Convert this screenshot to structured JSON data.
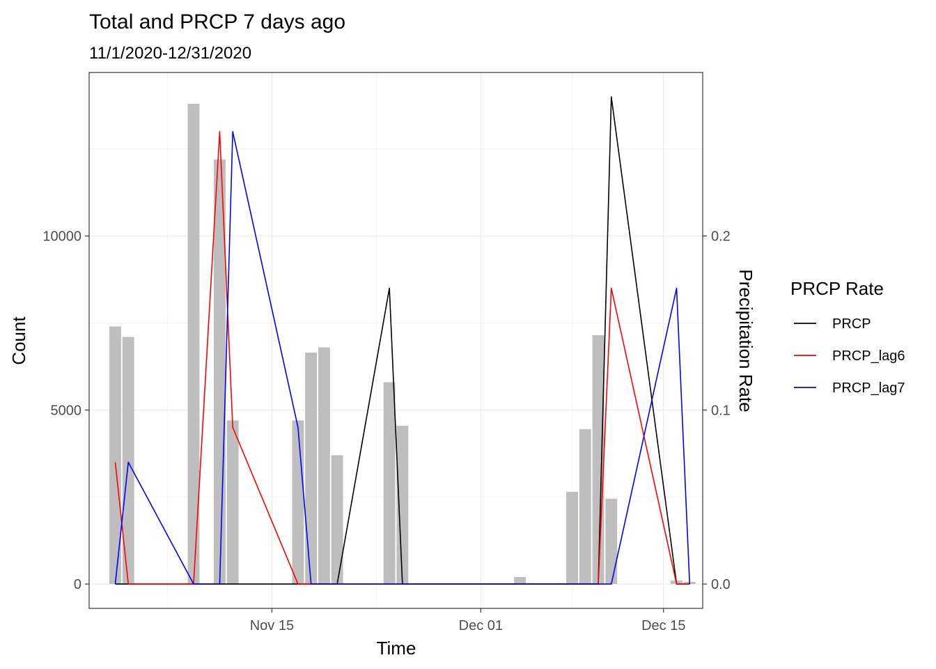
{
  "chart_data": {
    "type": "bar+line",
    "title": "Total and PRCP 7 days ago",
    "subtitle": "11/1/2020-12/31/2020",
    "xlabel": "Time",
    "ylabel": "Count",
    "y2label": "Precipitation Rate",
    "x_ticks": [
      "2020-11-15",
      "2020-12-01",
      "2020-12-15"
    ],
    "x_tick_labels": [
      "Nov 15",
      "Dec 01",
      "Dec 15"
    ],
    "xlim": [
      "2020-11-01",
      "2020-12-18"
    ],
    "y_ticks": [
      0,
      5000,
      10000
    ],
    "y_tick_labels": [
      "0",
      "5000",
      "10000"
    ],
    "ylim": [
      -700,
      14700
    ],
    "y2_ticks": [
      0.0,
      0.1,
      0.2
    ],
    "y2_tick_labels": [
      "0.0",
      "0.1",
      "0.2"
    ],
    "y2lim": [
      -0.014,
      0.294
    ],
    "grid": true,
    "bar_color": "#bebebe",
    "bars": [
      {
        "x": "2020-11-03",
        "value": 7400
      },
      {
        "x": "2020-11-04",
        "value": 7100
      },
      {
        "x": "2020-11-09",
        "value": 13800
      },
      {
        "x": "2020-11-11",
        "value": 12200
      },
      {
        "x": "2020-11-12",
        "value": 4700
      },
      {
        "x": "2020-11-17",
        "value": 4700
      },
      {
        "x": "2020-11-18",
        "value": 6650
      },
      {
        "x": "2020-11-19",
        "value": 6800
      },
      {
        "x": "2020-11-20",
        "value": 3700
      },
      {
        "x": "2020-11-24",
        "value": 5800
      },
      {
        "x": "2020-11-25",
        "value": 4550
      },
      {
        "x": "2020-12-04",
        "value": 200
      },
      {
        "x": "2020-12-08",
        "value": 2650
      },
      {
        "x": "2020-12-09",
        "value": 4450
      },
      {
        "x": "2020-12-10",
        "value": 7150
      },
      {
        "x": "2020-12-11",
        "value": 2450
      },
      {
        "x": "2020-12-16",
        "value": 100
      },
      {
        "x": "2020-12-17",
        "value": 60
      }
    ],
    "legend": {
      "title": "PRCP Rate",
      "position": "right"
    },
    "series": [
      {
        "name": "PRCP",
        "color": "#000000",
        "points": [
          [
            "2020-11-03",
            0
          ],
          [
            "2020-11-04",
            0
          ],
          [
            "2020-11-09",
            0
          ],
          [
            "2020-11-11",
            0
          ],
          [
            "2020-11-12",
            0
          ],
          [
            "2020-11-17",
            0
          ],
          [
            "2020-11-18",
            0
          ],
          [
            "2020-11-19",
            0
          ],
          [
            "2020-11-20",
            0
          ],
          [
            "2020-11-24",
            0.17
          ],
          [
            "2020-11-25",
            0
          ],
          [
            "2020-12-04",
            0
          ],
          [
            "2020-12-08",
            0
          ],
          [
            "2020-12-09",
            0
          ],
          [
            "2020-12-10",
            0
          ],
          [
            "2020-12-11",
            0.28
          ],
          [
            "2020-12-16",
            0
          ],
          [
            "2020-12-17",
            0
          ]
        ]
      },
      {
        "name": "PRCP_lag6",
        "color": "#ff0000",
        "points": [
          [
            "2020-11-03",
            0.07
          ],
          [
            "2020-11-04",
            0
          ],
          [
            "2020-11-09",
            0
          ],
          [
            "2020-11-11",
            0.26
          ],
          [
            "2020-11-12",
            0.09
          ],
          [
            "2020-11-17",
            0
          ],
          [
            "2020-11-18",
            0
          ],
          [
            "2020-11-19",
            0
          ],
          [
            "2020-11-20",
            0
          ],
          [
            "2020-11-24",
            0
          ],
          [
            "2020-11-25",
            0
          ],
          [
            "2020-12-04",
            0
          ],
          [
            "2020-12-08",
            0
          ],
          [
            "2020-12-09",
            0
          ],
          [
            "2020-12-10",
            0
          ],
          [
            "2020-12-11",
            0.17
          ],
          [
            "2020-12-16",
            0
          ],
          [
            "2020-12-17",
            0
          ]
        ]
      },
      {
        "name": "PRCP_lag7",
        "color": "#0000ff",
        "points": [
          [
            "2020-11-03",
            0
          ],
          [
            "2020-11-04",
            0.07
          ],
          [
            "2020-11-09",
            0
          ],
          [
            "2020-11-11",
            0
          ],
          [
            "2020-11-12",
            0.26
          ],
          [
            "2020-11-17",
            0.09
          ],
          [
            "2020-11-18",
            0
          ],
          [
            "2020-11-19",
            0
          ],
          [
            "2020-11-20",
            0
          ],
          [
            "2020-11-24",
            0
          ],
          [
            "2020-11-25",
            0
          ],
          [
            "2020-12-04",
            0
          ],
          [
            "2020-12-08",
            0
          ],
          [
            "2020-12-09",
            0
          ],
          [
            "2020-12-10",
            0
          ],
          [
            "2020-12-11",
            0
          ],
          [
            "2020-12-16",
            0.17
          ],
          [
            "2020-12-17",
            0
          ]
        ]
      }
    ]
  }
}
